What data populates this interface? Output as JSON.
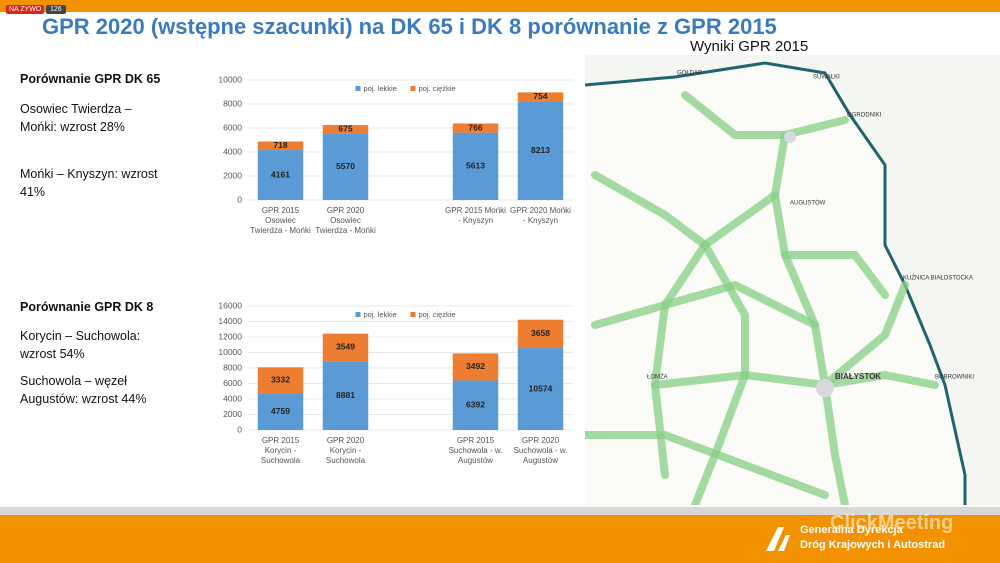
{
  "live_badge": "NA ŻYWO",
  "viewers": "126",
  "title": "GPR 2020 (wstępne szacunki) na DK 65 i DK 8 porównanie z GPR 2015",
  "map": {
    "title": "Wyniki GPR 2015",
    "labels": [
      "GOŁDAP",
      "SUWAŁKI",
      "OGRODNIKI",
      "AUGUSTÓW",
      "KUŹNICA BIAŁOSTOCKA",
      "BIAŁYSTOK",
      "BOBROWNIKI",
      "ŁOMŻA"
    ]
  },
  "sections": [
    {
      "heading": "Porównanie GPR DK 65",
      "notes": [
        "Osowiec Twierdza – Mońki: wzrost 28%",
        "Mońki – Knyszyn: wzrost 41%"
      ]
    },
    {
      "heading": "Porównanie GPR DK 8",
      "notes": [
        "Korycin – Suchowola: wzrost 54%",
        "Suchowola – węzeł Augustów: wzrost 44%"
      ]
    }
  ],
  "footer": {
    "org": [
      "Generalna Dyrekcja",
      "Dróg Krajowych i Autostrad"
    ],
    "brand": "ClickMeeting"
  },
  "chart_data": [
    {
      "type": "stacked-bar",
      "categories": [
        "GPR 2015 Osowiec Twierdza - Mońki",
        "GPR 2020 Osowiec Twierdza - Mońki",
        null,
        "GPR 2015 Mońki - Knyszyn",
        "GPR 2020 Mońki - Knyszyn"
      ],
      "series": [
        {
          "name": "poj. lekkie",
          "color": "#5b9bd5",
          "values": [
            4161,
            5570,
            null,
            5613,
            8213
          ]
        },
        {
          "name": "poj. ciężkie",
          "color": "#ed7d31",
          "values": [
            718,
            675,
            null,
            766,
            754
          ]
        }
      ],
      "ylim": [
        0,
        10000
      ],
      "yticks": [
        0,
        2000,
        4000,
        6000,
        8000,
        10000
      ],
      "legend": "top"
    },
    {
      "type": "stacked-bar",
      "categories": [
        "GPR 2015 Korycin - Suchowola",
        "GPR 2020 Korycin - Suchowola",
        null,
        "GPR 2015 Suchowola - w. Augustów",
        "GPR 2020 Suchowola - w. Augustów"
      ],
      "series": [
        {
          "name": "poj. lekkie",
          "color": "#5b9bd5",
          "values": [
            4759,
            8881,
            null,
            6392,
            10574
          ]
        },
        {
          "name": "poj. ciężkie",
          "color": "#ed7d31",
          "values": [
            3332,
            3549,
            null,
            3492,
            3658
          ]
        }
      ],
      "ylim": [
        0,
        16000
      ],
      "yticks": [
        0,
        2000,
        4000,
        6000,
        8000,
        10000,
        12000,
        14000,
        16000
      ],
      "legend": "top"
    }
  ]
}
